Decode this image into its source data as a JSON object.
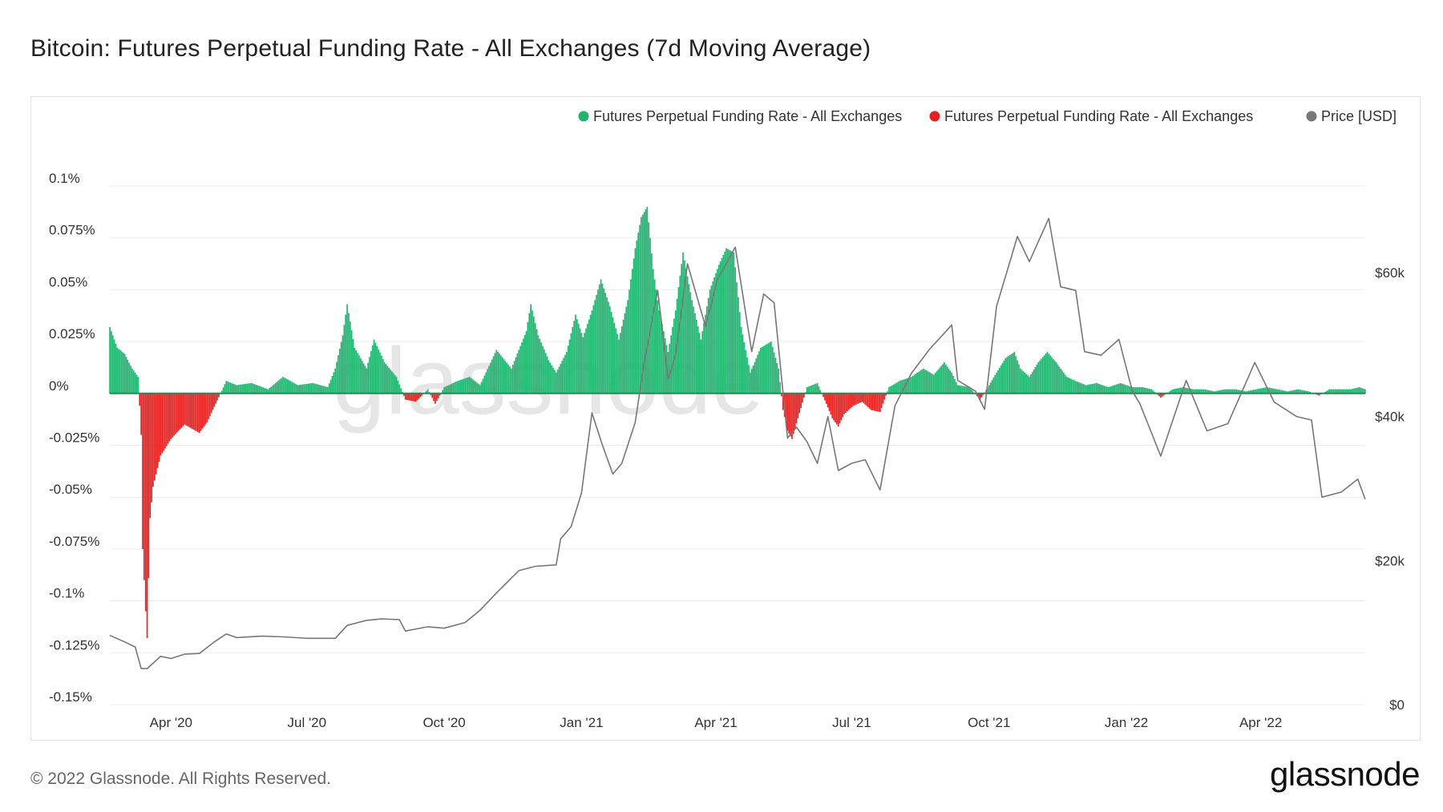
{
  "title": "Bitcoin: Futures Perpetual Funding Rate - All Exchanges (7d Moving Average)",
  "footer": {
    "copyright": "© 2022 Glassnode. All Rights Reserved.",
    "logo_text": "glassnode"
  },
  "watermark": "glassnode",
  "colors": {
    "positive": "#1fb56f",
    "negative": "#e8201f",
    "price": "#777777",
    "grid": "#ececec",
    "zero_line": "#1a8f57"
  },
  "chart_data": {
    "type": "bar",
    "legend_position": "top-right",
    "legend": [
      {
        "label": "Futures Perpetual Funding Rate - All Exchanges",
        "color": "#1fb56f"
      },
      {
        "label": "Futures Perpetual Funding Rate - All Exchanges",
        "color": "#e8201f"
      },
      {
        "label": "Price [USD]",
        "color": "#777777"
      }
    ],
    "grid": true,
    "x_range": [
      "2020-02-20",
      "2022-06-10"
    ],
    "x_ticks": [
      {
        "date": "2020-04-01",
        "label": "Apr '20"
      },
      {
        "date": "2020-07-01",
        "label": "Jul '20"
      },
      {
        "date": "2020-10-01",
        "label": "Oct '20"
      },
      {
        "date": "2021-01-01",
        "label": "Jan '21"
      },
      {
        "date": "2021-04-01",
        "label": "Apr '21"
      },
      {
        "date": "2021-07-01",
        "label": "Jul '21"
      },
      {
        "date": "2021-10-01",
        "label": "Oct '21"
      },
      {
        "date": "2022-01-01",
        "label": "Jan '22"
      },
      {
        "date": "2022-04-01",
        "label": "Apr '22"
      }
    ],
    "y_left": {
      "min": -0.15,
      "max": 0.1,
      "ticks": [
        {
          "value": 0.1,
          "label": "0.1%"
        },
        {
          "value": 0.075,
          "label": "0.075%"
        },
        {
          "value": 0.05,
          "label": "0.05%"
        },
        {
          "value": 0.025,
          "label": "0.025%"
        },
        {
          "value": 0,
          "label": "0%"
        },
        {
          "value": -0.025,
          "label": "-0.025%"
        },
        {
          "value": -0.05,
          "label": "-0.05%"
        },
        {
          "value": -0.075,
          "label": "-0.075%"
        },
        {
          "value": -0.1,
          "label": "-0.1%"
        },
        {
          "value": -0.125,
          "label": "-0.125%"
        },
        {
          "value": -0.15,
          "label": "-0.15%"
        }
      ]
    },
    "y_right": {
      "min": 0,
      "max": 72000,
      "ticks": [
        {
          "value": 60000,
          "label": "$60k"
        },
        {
          "value": 40000,
          "label": "$40k"
        },
        {
          "value": 20000,
          "label": "$20k"
        },
        {
          "value": 0,
          "label": "$0"
        }
      ]
    },
    "series": [
      {
        "type": "bar",
        "values_unit": "%",
        "points": [
          [
            "2020-02-20",
            0.032
          ],
          [
            "2020-02-25",
            0.022
          ],
          [
            "2020-03-01",
            0.019
          ],
          [
            "2020-03-06",
            0.012
          ],
          [
            "2020-03-10",
            0.008
          ],
          [
            "2020-03-12",
            -0.02
          ],
          [
            "2020-03-13",
            -0.075
          ],
          [
            "2020-03-14",
            -0.09
          ],
          [
            "2020-03-15",
            -0.105
          ],
          [
            "2020-03-16",
            -0.118
          ],
          [
            "2020-03-18",
            -0.06
          ],
          [
            "2020-03-20",
            -0.045
          ],
          [
            "2020-03-25",
            -0.03
          ],
          [
            "2020-04-01",
            -0.022
          ],
          [
            "2020-04-10",
            -0.015
          ],
          [
            "2020-04-20",
            -0.019
          ],
          [
            "2020-04-25",
            -0.014
          ],
          [
            "2020-05-01",
            -0.005
          ],
          [
            "2020-05-08",
            0.006
          ],
          [
            "2020-05-15",
            0.004
          ],
          [
            "2020-05-25",
            0.005
          ],
          [
            "2020-06-05",
            0.002
          ],
          [
            "2020-06-15",
            0.008
          ],
          [
            "2020-06-25",
            0.004
          ],
          [
            "2020-07-05",
            0.005
          ],
          [
            "2020-07-15",
            0.003
          ],
          [
            "2020-07-20",
            0.012
          ],
          [
            "2020-07-25",
            0.028
          ],
          [
            "2020-07-28",
            0.043
          ],
          [
            "2020-08-02",
            0.022
          ],
          [
            "2020-08-10",
            0.012
          ],
          [
            "2020-08-15",
            0.026
          ],
          [
            "2020-08-22",
            0.015
          ],
          [
            "2020-08-30",
            0.008
          ],
          [
            "2020-09-05",
            -0.003
          ],
          [
            "2020-09-12",
            -0.004
          ],
          [
            "2020-09-20",
            0.002
          ],
          [
            "2020-09-25",
            -0.005
          ],
          [
            "2020-10-01",
            0.003
          ],
          [
            "2020-10-10",
            0.006
          ],
          [
            "2020-10-18",
            0.008
          ],
          [
            "2020-10-25",
            0.004
          ],
          [
            "2020-11-05",
            0.021
          ],
          [
            "2020-11-15",
            0.012
          ],
          [
            "2020-11-25",
            0.03
          ],
          [
            "2020-11-28",
            0.043
          ],
          [
            "2020-12-03",
            0.028
          ],
          [
            "2020-12-10",
            0.016
          ],
          [
            "2020-12-15",
            0.01
          ],
          [
            "2020-12-22",
            0.02
          ],
          [
            "2020-12-28",
            0.038
          ],
          [
            "2021-01-02",
            0.027
          ],
          [
            "2021-01-08",
            0.04
          ],
          [
            "2021-01-14",
            0.055
          ],
          [
            "2021-01-20",
            0.042
          ],
          [
            "2021-01-26",
            0.026
          ],
          [
            "2021-02-01",
            0.045
          ],
          [
            "2021-02-06",
            0.07
          ],
          [
            "2021-02-10",
            0.085
          ],
          [
            "2021-02-14",
            0.09
          ],
          [
            "2021-02-18",
            0.06
          ],
          [
            "2021-02-22",
            0.04
          ],
          [
            "2021-02-28",
            0.02
          ],
          [
            "2021-03-05",
            0.04
          ],
          [
            "2021-03-10",
            0.068
          ],
          [
            "2021-03-16",
            0.045
          ],
          [
            "2021-03-22",
            0.026
          ],
          [
            "2021-03-28",
            0.05
          ],
          [
            "2021-04-03",
            0.062
          ],
          [
            "2021-04-08",
            0.07
          ],
          [
            "2021-04-13",
            0.068
          ],
          [
            "2021-04-18",
            0.032
          ],
          [
            "2021-04-24",
            0.01
          ],
          [
            "2021-05-01",
            0.022
          ],
          [
            "2021-05-08",
            0.025
          ],
          [
            "2021-05-13",
            0.012
          ],
          [
            "2021-05-16",
            -0.008
          ],
          [
            "2021-05-19",
            -0.018
          ],
          [
            "2021-05-22",
            -0.022
          ],
          [
            "2021-05-26",
            -0.012
          ],
          [
            "2021-06-01",
            0.003
          ],
          [
            "2021-06-08",
            0.005
          ],
          [
            "2021-06-14",
            -0.005
          ],
          [
            "2021-06-18",
            -0.012
          ],
          [
            "2021-06-22",
            -0.016
          ],
          [
            "2021-06-26",
            -0.01
          ],
          [
            "2021-07-02",
            -0.006
          ],
          [
            "2021-07-08",
            -0.004
          ],
          [
            "2021-07-14",
            -0.008
          ],
          [
            "2021-07-20",
            -0.009
          ],
          [
            "2021-07-26",
            0.003
          ],
          [
            "2021-08-02",
            0.006
          ],
          [
            "2021-08-10",
            0.008
          ],
          [
            "2021-08-18",
            0.012
          ],
          [
            "2021-08-25",
            0.009
          ],
          [
            "2021-09-01",
            0.015
          ],
          [
            "2021-09-06",
            0.01
          ],
          [
            "2021-09-10",
            0.004
          ],
          [
            "2021-09-18",
            0.003
          ],
          [
            "2021-09-25",
            -0.003
          ],
          [
            "2021-10-01",
            0.004
          ],
          [
            "2021-10-06",
            0.01
          ],
          [
            "2021-10-12",
            0.017
          ],
          [
            "2021-10-18",
            0.02
          ],
          [
            "2021-10-22",
            0.012
          ],
          [
            "2021-10-28",
            0.008
          ],
          [
            "2021-11-03",
            0.015
          ],
          [
            "2021-11-09",
            0.02
          ],
          [
            "2021-11-15",
            0.015
          ],
          [
            "2021-11-22",
            0.008
          ],
          [
            "2021-11-28",
            0.006
          ],
          [
            "2021-12-05",
            0.004
          ],
          [
            "2021-12-12",
            0.005
          ],
          [
            "2021-12-20",
            0.003
          ],
          [
            "2021-12-28",
            0.005
          ],
          [
            "2022-01-05",
            0.003
          ],
          [
            "2022-01-12",
            0.003
          ],
          [
            "2022-01-18",
            0.002
          ],
          [
            "2022-01-24",
            -0.002
          ],
          [
            "2022-02-01",
            0.002
          ],
          [
            "2022-02-08",
            0.003
          ],
          [
            "2022-02-15",
            0.002
          ],
          [
            "2022-02-22",
            0.002
          ],
          [
            "2022-03-01",
            0.001
          ],
          [
            "2022-03-08",
            0.002
          ],
          [
            "2022-03-15",
            0.002
          ],
          [
            "2022-03-22",
            0.001
          ],
          [
            "2022-03-29",
            0.002
          ],
          [
            "2022-04-05",
            0.003
          ],
          [
            "2022-04-12",
            0.002
          ],
          [
            "2022-04-19",
            0.001
          ],
          [
            "2022-04-26",
            0.002
          ],
          [
            "2022-05-03",
            0.001
          ],
          [
            "2022-05-10",
            -0.001
          ],
          [
            "2022-05-17",
            0.002
          ],
          [
            "2022-05-24",
            0.002
          ],
          [
            "2022-05-31",
            0.002
          ],
          [
            "2022-06-06",
            0.003
          ],
          [
            "2022-06-10",
            0.002
          ]
        ]
      },
      {
        "type": "line",
        "axis": "right",
        "points": [
          [
            "2020-02-20",
            9600
          ],
          [
            "2020-03-01",
            8700
          ],
          [
            "2020-03-08",
            8000
          ],
          [
            "2020-03-12",
            5000
          ],
          [
            "2020-03-16",
            5000
          ],
          [
            "2020-03-25",
            6700
          ],
          [
            "2020-04-01",
            6400
          ],
          [
            "2020-04-10",
            7000
          ],
          [
            "2020-04-20",
            7100
          ],
          [
            "2020-04-30",
            8700
          ],
          [
            "2020-05-08",
            9800
          ],
          [
            "2020-05-15",
            9300
          ],
          [
            "2020-06-01",
            9500
          ],
          [
            "2020-06-15",
            9400
          ],
          [
            "2020-07-01",
            9200
          ],
          [
            "2020-07-20",
            9200
          ],
          [
            "2020-07-28",
            11000
          ],
          [
            "2020-08-10",
            11700
          ],
          [
            "2020-08-20",
            11900
          ],
          [
            "2020-09-01",
            11800
          ],
          [
            "2020-09-05",
            10200
          ],
          [
            "2020-09-20",
            10800
          ],
          [
            "2020-10-01",
            10600
          ],
          [
            "2020-10-15",
            11400
          ],
          [
            "2020-10-25",
            13100
          ],
          [
            "2020-11-05",
            15500
          ],
          [
            "2020-11-20",
            18600
          ],
          [
            "2020-12-01",
            19200
          ],
          [
            "2020-12-15",
            19400
          ],
          [
            "2020-12-18",
            23000
          ],
          [
            "2020-12-25",
            24700
          ],
          [
            "2021-01-01",
            29400
          ],
          [
            "2021-01-08",
            40500
          ],
          [
            "2021-01-15",
            36000
          ],
          [
            "2021-01-22",
            32000
          ],
          [
            "2021-01-28",
            33500
          ],
          [
            "2021-02-06",
            39200
          ],
          [
            "2021-02-12",
            47500
          ],
          [
            "2021-02-21",
            57500
          ],
          [
            "2021-02-28",
            45200
          ],
          [
            "2021-03-05",
            48500
          ],
          [
            "2021-03-13",
            61200
          ],
          [
            "2021-03-25",
            52500
          ],
          [
            "2021-04-02",
            59000
          ],
          [
            "2021-04-14",
            63500
          ],
          [
            "2021-04-25",
            49000
          ],
          [
            "2021-05-03",
            57000
          ],
          [
            "2021-05-10",
            55800
          ],
          [
            "2021-05-19",
            37000
          ],
          [
            "2021-05-25",
            38500
          ],
          [
            "2021-06-01",
            36500
          ],
          [
            "2021-06-08",
            33500
          ],
          [
            "2021-06-15",
            40000
          ],
          [
            "2021-06-22",
            32500
          ],
          [
            "2021-07-01",
            33500
          ],
          [
            "2021-07-10",
            34000
          ],
          [
            "2021-07-20",
            29800
          ],
          [
            "2021-07-30",
            41500
          ],
          [
            "2021-08-10",
            46000
          ],
          [
            "2021-08-22",
            49300
          ],
          [
            "2021-09-06",
            52700
          ],
          [
            "2021-09-10",
            45000
          ],
          [
            "2021-09-22",
            43500
          ],
          [
            "2021-09-28",
            41000
          ],
          [
            "2021-10-06",
            55300
          ],
          [
            "2021-10-15",
            61500
          ],
          [
            "2021-10-20",
            65000
          ],
          [
            "2021-10-28",
            61500
          ],
          [
            "2021-11-10",
            67500
          ],
          [
            "2021-11-18",
            58000
          ],
          [
            "2021-11-28",
            57500
          ],
          [
            "2021-12-04",
            49000
          ],
          [
            "2021-12-15",
            48500
          ],
          [
            "2021-12-27",
            50700
          ],
          [
            "2022-01-05",
            43500
          ],
          [
            "2022-01-10",
            41800
          ],
          [
            "2022-01-24",
            34500
          ],
          [
            "2022-02-10",
            45000
          ],
          [
            "2022-02-24",
            38000
          ],
          [
            "2022-03-10",
            39000
          ],
          [
            "2022-03-28",
            47500
          ],
          [
            "2022-04-10",
            42000
          ],
          [
            "2022-04-25",
            40000
          ],
          [
            "2022-05-05",
            39500
          ],
          [
            "2022-05-12",
            28800
          ],
          [
            "2022-05-25",
            29500
          ],
          [
            "2022-06-05",
            31300
          ],
          [
            "2022-06-10",
            28500
          ]
        ]
      }
    ]
  }
}
